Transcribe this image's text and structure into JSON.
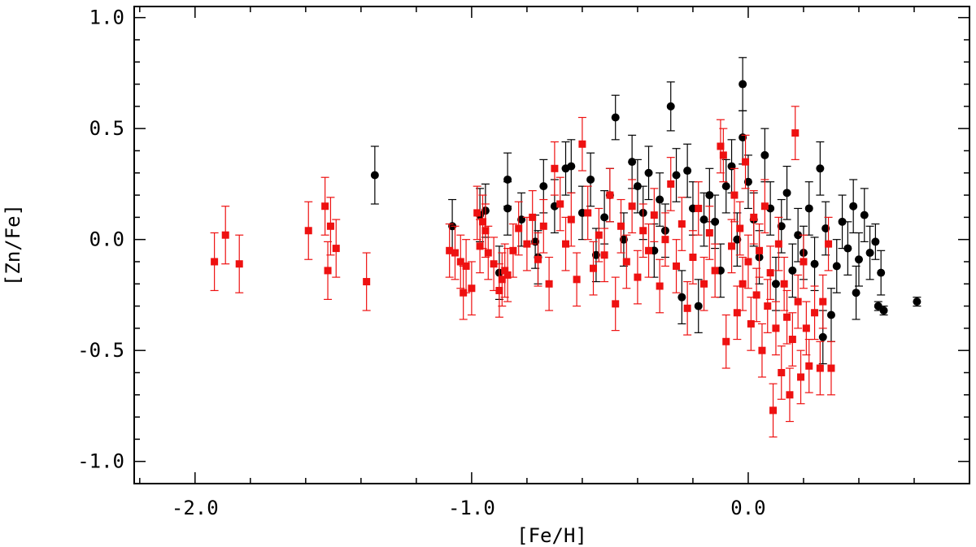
{
  "chart_data": {
    "type": "scatter",
    "title": "",
    "xlabel": "[Fe/H]",
    "ylabel": "[Zn/Fe]",
    "xlim": [
      -2.22,
      0.8
    ],
    "ylim": [
      -1.1,
      1.05
    ],
    "x_ticks": [
      -2.0,
      -1.0,
      0.0
    ],
    "x_tick_labels": [
      "-2.0",
      "-1.0",
      "0.0"
    ],
    "y_ticks": [
      -1.0,
      -0.5,
      0.0,
      0.5,
      1.0
    ],
    "y_tick_labels": [
      "-1.0",
      "-0.5",
      "0.0",
      "0.5",
      "1.0"
    ],
    "grid": false,
    "series": [
      {
        "name": "black-circles",
        "marker": "circle",
        "color": "#000000",
        "points": [
          {
            "x": -1.35,
            "y": 0.29,
            "e": 0.13
          },
          {
            "x": -1.07,
            "y": 0.06,
            "e": 0.12
          },
          {
            "x": -0.97,
            "y": 0.11,
            "e": 0.12
          },
          {
            "x": -0.95,
            "y": 0.13,
            "e": 0.12
          },
          {
            "x": -0.9,
            "y": -0.15,
            "e": 0.12
          },
          {
            "x": -0.87,
            "y": 0.27,
            "e": 0.12
          },
          {
            "x": -0.87,
            "y": 0.14,
            "e": 0.12
          },
          {
            "x": -0.82,
            "y": 0.09,
            "e": 0.12
          },
          {
            "x": -0.77,
            "y": -0.01,
            "e": 0.12
          },
          {
            "x": -0.76,
            "y": -0.08,
            "e": 0.12
          },
          {
            "x": -0.74,
            "y": 0.24,
            "e": 0.12
          },
          {
            "x": -0.7,
            "y": 0.15,
            "e": 0.12
          },
          {
            "x": -0.66,
            "y": 0.32,
            "e": 0.12
          },
          {
            "x": -0.64,
            "y": 0.33,
            "e": 0.12
          },
          {
            "x": -0.6,
            "y": 0.12,
            "e": 0.12
          },
          {
            "x": -0.57,
            "y": 0.27,
            "e": 0.12
          },
          {
            "x": -0.55,
            "y": -0.07,
            "e": 0.12
          },
          {
            "x": -0.52,
            "y": 0.1,
            "e": 0.12
          },
          {
            "x": -0.5,
            "y": 0.2,
            "e": 0.12
          },
          {
            "x": -0.48,
            "y": 0.55,
            "e": 0.1
          },
          {
            "x": -0.45,
            "y": 0.0,
            "e": 0.12
          },
          {
            "x": -0.42,
            "y": 0.35,
            "e": 0.12
          },
          {
            "x": -0.4,
            "y": 0.24,
            "e": 0.12
          },
          {
            "x": -0.38,
            "y": 0.12,
            "e": 0.12
          },
          {
            "x": -0.36,
            "y": 0.3,
            "e": 0.12
          },
          {
            "x": -0.34,
            "y": -0.05,
            "e": 0.12
          },
          {
            "x": -0.32,
            "y": 0.18,
            "e": 0.12
          },
          {
            "x": -0.3,
            "y": 0.04,
            "e": 0.12
          },
          {
            "x": -0.28,
            "y": 0.6,
            "e": 0.11
          },
          {
            "x": -0.26,
            "y": 0.29,
            "e": 0.12
          },
          {
            "x": -0.24,
            "y": -0.26,
            "e": 0.12
          },
          {
            "x": -0.22,
            "y": 0.31,
            "e": 0.12
          },
          {
            "x": -0.2,
            "y": 0.14,
            "e": 0.12
          },
          {
            "x": -0.18,
            "y": -0.3,
            "e": 0.12
          },
          {
            "x": -0.16,
            "y": 0.09,
            "e": 0.12
          },
          {
            "x": -0.14,
            "y": 0.2,
            "e": 0.12
          },
          {
            "x": -0.12,
            "y": 0.08,
            "e": 0.12
          },
          {
            "x": -0.1,
            "y": -0.14,
            "e": 0.12
          },
          {
            "x": -0.08,
            "y": 0.24,
            "e": 0.12
          },
          {
            "x": -0.06,
            "y": 0.33,
            "e": 0.12
          },
          {
            "x": -0.04,
            "y": 0.0,
            "e": 0.12
          },
          {
            "x": -0.02,
            "y": 0.7,
            "e": 0.12
          },
          {
            "x": -0.02,
            "y": 0.46,
            "e": 0.12
          },
          {
            "x": 0.0,
            "y": 0.26,
            "e": 0.12
          },
          {
            "x": 0.02,
            "y": 0.09,
            "e": 0.12
          },
          {
            "x": 0.04,
            "y": -0.08,
            "e": 0.12
          },
          {
            "x": 0.06,
            "y": 0.38,
            "e": 0.12
          },
          {
            "x": 0.08,
            "y": 0.14,
            "e": 0.12
          },
          {
            "x": 0.1,
            "y": -0.2,
            "e": 0.12
          },
          {
            "x": 0.12,
            "y": 0.06,
            "e": 0.12
          },
          {
            "x": 0.14,
            "y": 0.21,
            "e": 0.12
          },
          {
            "x": 0.16,
            "y": -0.14,
            "e": 0.12
          },
          {
            "x": 0.18,
            "y": 0.02,
            "e": 0.12
          },
          {
            "x": 0.2,
            "y": -0.06,
            "e": 0.12
          },
          {
            "x": 0.22,
            "y": 0.14,
            "e": 0.12
          },
          {
            "x": 0.24,
            "y": -0.11,
            "e": 0.12
          },
          {
            "x": 0.26,
            "y": 0.32,
            "e": 0.12
          },
          {
            "x": 0.27,
            "y": -0.44,
            "e": 0.12
          },
          {
            "x": 0.28,
            "y": 0.05,
            "e": 0.12
          },
          {
            "x": 0.3,
            "y": -0.34,
            "e": 0.12
          },
          {
            "x": 0.32,
            "y": -0.12,
            "e": 0.12
          },
          {
            "x": 0.34,
            "y": 0.08,
            "e": 0.12
          },
          {
            "x": 0.36,
            "y": -0.04,
            "e": 0.12
          },
          {
            "x": 0.38,
            "y": 0.15,
            "e": 0.12
          },
          {
            "x": 0.39,
            "y": -0.24,
            "e": 0.12
          },
          {
            "x": 0.4,
            "y": -0.09,
            "e": 0.12
          },
          {
            "x": 0.42,
            "y": 0.11,
            "e": 0.12
          },
          {
            "x": 0.44,
            "y": -0.06,
            "e": 0.12
          },
          {
            "x": 0.46,
            "y": -0.01,
            "e": 0.08
          },
          {
            "x": 0.47,
            "y": -0.3,
            "e": 0.02
          },
          {
            "x": 0.48,
            "y": -0.15,
            "e": 0.1
          },
          {
            "x": 0.49,
            "y": -0.32,
            "e": 0.02
          },
          {
            "x": 0.61,
            "y": -0.28,
            "e": 0.02
          }
        ]
      },
      {
        "name": "red-squares",
        "marker": "square",
        "color": "#ee1111",
        "points": [
          {
            "x": -1.93,
            "y": -0.1,
            "e": 0.13
          },
          {
            "x": -1.89,
            "y": 0.02,
            "e": 0.13
          },
          {
            "x": -1.84,
            "y": -0.11,
            "e": 0.13
          },
          {
            "x": -1.59,
            "y": 0.04,
            "e": 0.13
          },
          {
            "x": -1.53,
            "y": 0.15,
            "e": 0.13
          },
          {
            "x": -1.52,
            "y": -0.14,
            "e": 0.13
          },
          {
            "x": -1.51,
            "y": 0.06,
            "e": 0.13
          },
          {
            "x": -1.49,
            "y": -0.04,
            "e": 0.13
          },
          {
            "x": -1.38,
            "y": -0.19,
            "e": 0.13
          },
          {
            "x": -1.08,
            "y": -0.05,
            "e": 0.12
          },
          {
            "x": -1.06,
            "y": -0.06,
            "e": 0.12
          },
          {
            "x": -1.04,
            "y": -0.1,
            "e": 0.12
          },
          {
            "x": -1.03,
            "y": -0.24,
            "e": 0.12
          },
          {
            "x": -1.02,
            "y": -0.12,
            "e": 0.12
          },
          {
            "x": -1.0,
            "y": -0.22,
            "e": 0.12
          },
          {
            "x": -0.98,
            "y": 0.12,
            "e": 0.12
          },
          {
            "x": -0.97,
            "y": -0.03,
            "e": 0.12
          },
          {
            "x": -0.96,
            "y": 0.08,
            "e": 0.12
          },
          {
            "x": -0.95,
            "y": 0.04,
            "e": 0.12
          },
          {
            "x": -0.94,
            "y": -0.06,
            "e": 0.12
          },
          {
            "x": -0.92,
            "y": -0.11,
            "e": 0.12
          },
          {
            "x": -0.9,
            "y": -0.23,
            "e": 0.12
          },
          {
            "x": -0.89,
            "y": -0.18,
            "e": 0.12
          },
          {
            "x": -0.88,
            "y": -0.14,
            "e": 0.12
          },
          {
            "x": -0.87,
            "y": -0.16,
            "e": 0.12
          },
          {
            "x": -0.85,
            "y": -0.05,
            "e": 0.12
          },
          {
            "x": -0.83,
            "y": 0.05,
            "e": 0.12
          },
          {
            "x": -0.8,
            "y": -0.02,
            "e": 0.12
          },
          {
            "x": -0.78,
            "y": 0.1,
            "e": 0.12
          },
          {
            "x": -0.76,
            "y": -0.09,
            "e": 0.12
          },
          {
            "x": -0.74,
            "y": 0.06,
            "e": 0.12
          },
          {
            "x": -0.72,
            "y": -0.2,
            "e": 0.12
          },
          {
            "x": -0.7,
            "y": 0.32,
            "e": 0.12
          },
          {
            "x": -0.68,
            "y": 0.16,
            "e": 0.12
          },
          {
            "x": -0.66,
            "y": -0.02,
            "e": 0.12
          },
          {
            "x": -0.64,
            "y": 0.09,
            "e": 0.12
          },
          {
            "x": -0.62,
            "y": -0.18,
            "e": 0.12
          },
          {
            "x": -0.6,
            "y": 0.43,
            "e": 0.12
          },
          {
            "x": -0.58,
            "y": 0.12,
            "e": 0.12
          },
          {
            "x": -0.56,
            "y": -0.13,
            "e": 0.12
          },
          {
            "x": -0.54,
            "y": 0.02,
            "e": 0.12
          },
          {
            "x": -0.52,
            "y": -0.07,
            "e": 0.12
          },
          {
            "x": -0.5,
            "y": 0.2,
            "e": 0.12
          },
          {
            "x": -0.48,
            "y": -0.29,
            "e": 0.12
          },
          {
            "x": -0.46,
            "y": 0.06,
            "e": 0.12
          },
          {
            "x": -0.44,
            "y": -0.1,
            "e": 0.12
          },
          {
            "x": -0.42,
            "y": 0.15,
            "e": 0.12
          },
          {
            "x": -0.4,
            "y": -0.17,
            "e": 0.12
          },
          {
            "x": -0.38,
            "y": 0.04,
            "e": 0.12
          },
          {
            "x": -0.36,
            "y": -0.05,
            "e": 0.12
          },
          {
            "x": -0.34,
            "y": 0.11,
            "e": 0.12
          },
          {
            "x": -0.32,
            "y": -0.21,
            "e": 0.12
          },
          {
            "x": -0.3,
            "y": 0.0,
            "e": 0.12
          },
          {
            "x": -0.28,
            "y": 0.25,
            "e": 0.12
          },
          {
            "x": -0.26,
            "y": -0.12,
            "e": 0.12
          },
          {
            "x": -0.24,
            "y": 0.07,
            "e": 0.12
          },
          {
            "x": -0.22,
            "y": -0.31,
            "e": 0.12
          },
          {
            "x": -0.2,
            "y": -0.08,
            "e": 0.12
          },
          {
            "x": -0.18,
            "y": 0.14,
            "e": 0.12
          },
          {
            "x": -0.16,
            "y": -0.2,
            "e": 0.12
          },
          {
            "x": -0.14,
            "y": 0.03,
            "e": 0.12
          },
          {
            "x": -0.12,
            "y": -0.14,
            "e": 0.12
          },
          {
            "x": -0.1,
            "y": 0.42,
            "e": 0.12
          },
          {
            "x": -0.09,
            "y": 0.38,
            "e": 0.12
          },
          {
            "x": -0.08,
            "y": -0.46,
            "e": 0.12
          },
          {
            "x": -0.06,
            "y": -0.03,
            "e": 0.12
          },
          {
            "x": -0.05,
            "y": 0.2,
            "e": 0.12
          },
          {
            "x": -0.04,
            "y": -0.33,
            "e": 0.12
          },
          {
            "x": -0.03,
            "y": 0.05,
            "e": 0.12
          },
          {
            "x": -0.02,
            "y": -0.2,
            "e": 0.12
          },
          {
            "x": -0.01,
            "y": 0.35,
            "e": 0.12
          },
          {
            "x": 0.0,
            "y": -0.1,
            "e": 0.12
          },
          {
            "x": 0.01,
            "y": -0.38,
            "e": 0.12
          },
          {
            "x": 0.02,
            "y": 0.1,
            "e": 0.12
          },
          {
            "x": 0.03,
            "y": -0.25,
            "e": 0.12
          },
          {
            "x": 0.04,
            "y": -0.05,
            "e": 0.12
          },
          {
            "x": 0.05,
            "y": -0.5,
            "e": 0.12
          },
          {
            "x": 0.06,
            "y": 0.15,
            "e": 0.12
          },
          {
            "x": 0.07,
            "y": -0.3,
            "e": 0.12
          },
          {
            "x": 0.08,
            "y": -0.15,
            "e": 0.12
          },
          {
            "x": 0.09,
            "y": -0.77,
            "e": 0.12
          },
          {
            "x": 0.1,
            "y": -0.4,
            "e": 0.12
          },
          {
            "x": 0.11,
            "y": -0.02,
            "e": 0.12
          },
          {
            "x": 0.12,
            "y": -0.6,
            "e": 0.12
          },
          {
            "x": 0.13,
            "y": -0.2,
            "e": 0.12
          },
          {
            "x": 0.14,
            "y": -0.35,
            "e": 0.12
          },
          {
            "x": 0.15,
            "y": -0.7,
            "e": 0.12
          },
          {
            "x": 0.16,
            "y": -0.45,
            "e": 0.12
          },
          {
            "x": 0.17,
            "y": 0.48,
            "e": 0.12
          },
          {
            "x": 0.18,
            "y": -0.28,
            "e": 0.12
          },
          {
            "x": 0.19,
            "y": -0.62,
            "e": 0.12
          },
          {
            "x": 0.2,
            "y": -0.1,
            "e": 0.12
          },
          {
            "x": 0.21,
            "y": -0.4,
            "e": 0.12
          },
          {
            "x": 0.22,
            "y": -0.57,
            "e": 0.12
          },
          {
            "x": 0.24,
            "y": -0.33,
            "e": 0.12
          },
          {
            "x": 0.26,
            "y": -0.58,
            "e": 0.12
          },
          {
            "x": 0.27,
            "y": -0.28,
            "e": 0.12
          },
          {
            "x": 0.29,
            "y": -0.02,
            "e": 0.12
          },
          {
            "x": 0.3,
            "y": -0.58,
            "e": 0.12
          }
        ]
      }
    ]
  }
}
